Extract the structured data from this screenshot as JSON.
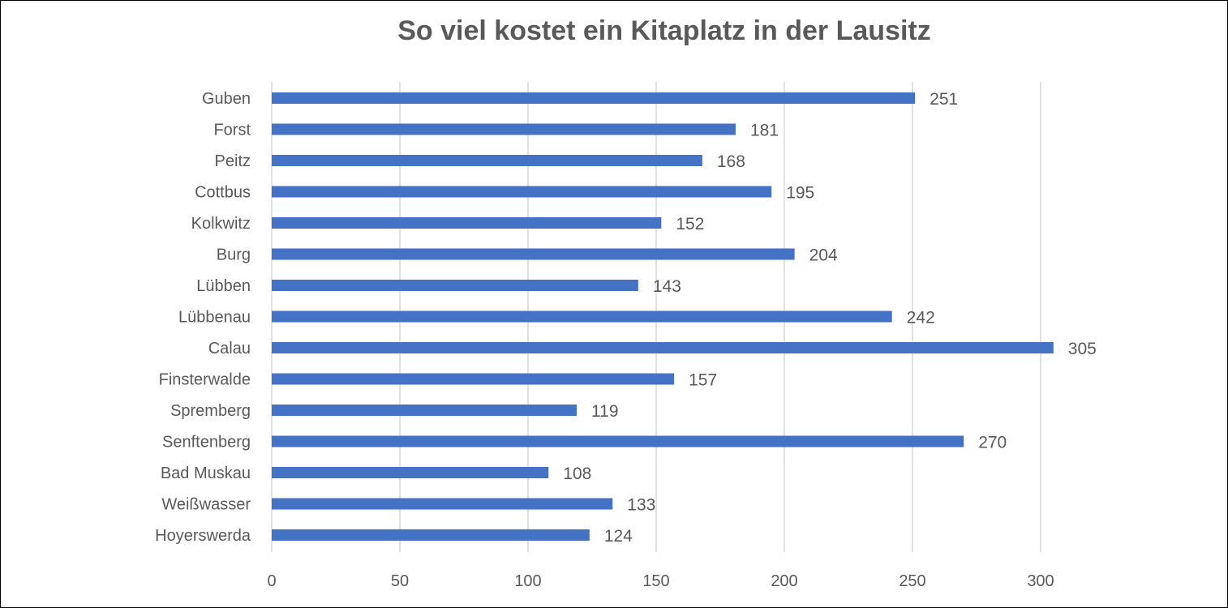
{
  "chart_data": {
    "type": "bar",
    "orientation": "horizontal",
    "title": "So viel kostet ein Kitaplatz in der Lausitz",
    "xlabel": "",
    "ylabel": "",
    "categories": [
      "Guben",
      "Forst",
      "Peitz",
      "Cottbus",
      "Kolkwitz",
      "Burg",
      "Lübben",
      "Lübbenau",
      "Calau",
      "Finsterwalde",
      "Spremberg",
      "Senftenberg",
      "Bad Muskau",
      "Weißwasser",
      "Hoyerswerda"
    ],
    "values": [
      251,
      181,
      168,
      195,
      152,
      204,
      143,
      242,
      305,
      157,
      119,
      270,
      108,
      133,
      124
    ],
    "xlim": [
      0,
      300
    ],
    "xticks": [
      0,
      50,
      100,
      150,
      200,
      250,
      300
    ],
    "grid": true,
    "data_labels": true,
    "bar_color": "#4472C4"
  }
}
